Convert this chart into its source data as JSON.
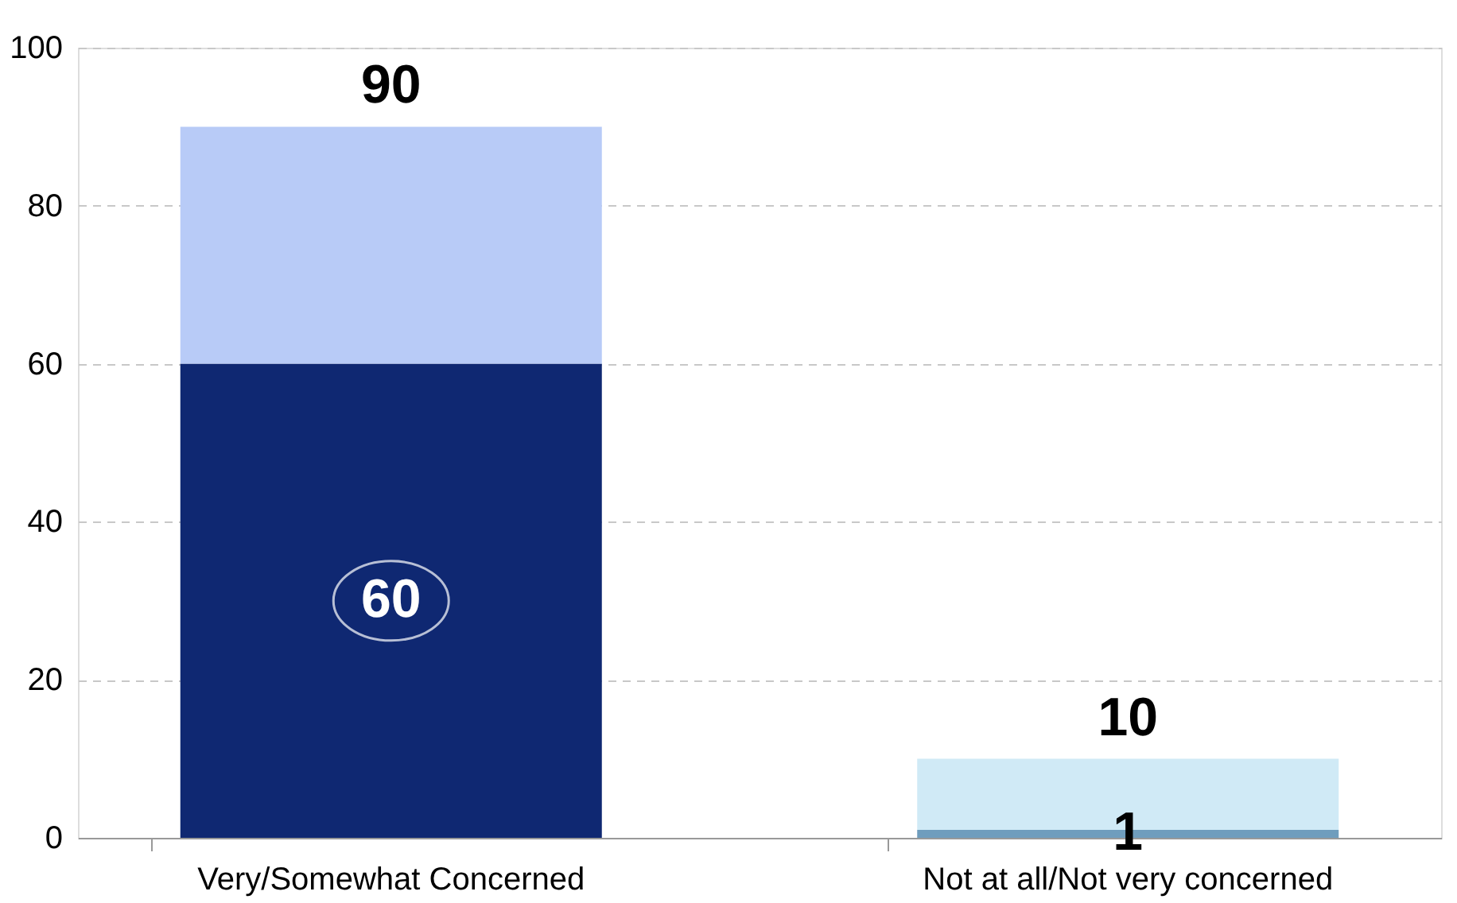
{
  "chart_data": {
    "type": "bar",
    "stacked": true,
    "categories": [
      "Very/Somewhat Concerned",
      "Not at all/Not very concerned"
    ],
    "series": [
      {
        "colors": [
          "#0f2872",
          "#6f9dbd"
        ],
        "values": [
          60,
          1
        ],
        "value_labels": [
          "60",
          "1"
        ]
      },
      {
        "colors": [
          "#b8cbf7",
          "#d0eaf6"
        ],
        "values": [
          30,
          9
        ],
        "value_labels": [
          null,
          null
        ]
      }
    ],
    "totals": [
      "90",
      "10"
    ],
    "ylim": [
      0,
      100
    ],
    "yticks": [
      0,
      20,
      40,
      60,
      80,
      100
    ],
    "grid": "y"
  }
}
